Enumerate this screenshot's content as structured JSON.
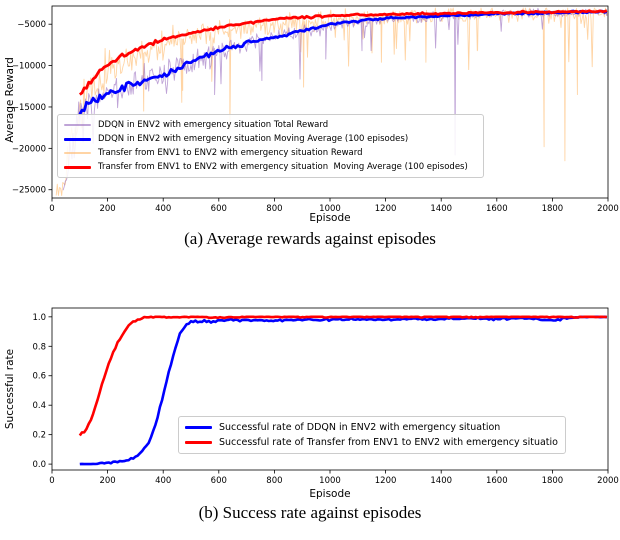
{
  "captions": {
    "a": "(a) Average rewards against episodes",
    "b": "(b) Success rate against episodes"
  },
  "chart_data": [
    {
      "id": "a",
      "type": "line",
      "title": "",
      "xlabel": "Episode",
      "ylabel": "Average Reward",
      "xlim": [
        0,
        2000
      ],
      "ylim": [
        -26000,
        -2800
      ],
      "x_ticks": [
        0,
        200,
        400,
        600,
        800,
        1000,
        1200,
        1400,
        1600,
        1800,
        2000
      ],
      "y_ticks": [
        -25000,
        -20000,
        -15000,
        -10000,
        -5000
      ],
      "y_tick_labels": [
        "−25000",
        "−20000",
        "−15000",
        "−10000",
        "−5000"
      ],
      "grid": false,
      "legend": {
        "position": "lower-left",
        "order": [
          1,
          2,
          0,
          3
        ]
      },
      "series": [
        {
          "label": "Transfer from ENV1 to ENV2 with emergency situation Reward",
          "color": "#ffb05a",
          "alpha": 0.55,
          "lw": 0.9,
          "type": "raw",
          "seed": 13,
          "range": [
            15,
            2000
          ],
          "base": [
            [
              15,
              -25300
            ],
            [
              40,
              -23500
            ],
            [
              70,
              -19500
            ],
            [
              100,
              -15800
            ],
            [
              150,
              -12800
            ],
            [
              200,
              -10800
            ],
            [
              250,
              -9700
            ],
            [
              300,
              -8900
            ],
            [
              400,
              -7400
            ],
            [
              500,
              -6500
            ],
            [
              600,
              -5900
            ],
            [
              700,
              -5300
            ],
            [
              800,
              -5000
            ],
            [
              900,
              -4700
            ],
            [
              1000,
              -4400
            ],
            [
              1200,
              -4100
            ],
            [
              1400,
              -3950
            ],
            [
              1700,
              -3750
            ],
            [
              2000,
              -3600
            ]
          ],
          "amplitude": [
            [
              15,
              1800
            ],
            [
              100,
              2600
            ],
            [
              250,
              2200
            ],
            [
              400,
              1700
            ],
            [
              600,
              1300
            ],
            [
              800,
              1100
            ],
            [
              1100,
              950
            ],
            [
              1500,
              900
            ],
            [
              2000,
              950
            ]
          ],
          "spike_prob": 0.045,
          "spike_max": 9000,
          "spikes": [
            [
              330,
              -15500
            ],
            [
              470,
              -13000
            ],
            [
              640,
              -17800
            ],
            [
              905,
              -12600
            ],
            [
              1185,
              -9600
            ],
            [
              1345,
              -9600
            ],
            [
              1530,
              -8200
            ],
            [
              1770,
              -19800
            ],
            [
              1845,
              -21500
            ],
            [
              1890,
              -13500
            ]
          ]
        },
        {
          "label": "DDQN in ENV2 with emergency situation Total Reward",
          "color": "#9467bd",
          "alpha": 0.6,
          "lw": 0.9,
          "type": "raw",
          "seed": 7,
          "range": [
            40,
            2000
          ],
          "base": [
            [
              40,
              -24500
            ],
            [
              70,
              -20000
            ],
            [
              100,
              -16800
            ],
            [
              150,
              -14800
            ],
            [
              200,
              -13900
            ],
            [
              300,
              -12300
            ],
            [
              400,
              -11100
            ],
            [
              500,
              -9700
            ],
            [
              600,
              -8400
            ],
            [
              700,
              -7400
            ],
            [
              800,
              -6600
            ],
            [
              900,
              -5900
            ],
            [
              1000,
              -5100
            ],
            [
              1100,
              -4700
            ],
            [
              1200,
              -4400
            ],
            [
              1400,
              -4050
            ],
            [
              1600,
              -3750
            ],
            [
              1800,
              -3650
            ],
            [
              2000,
              -3550
            ]
          ],
          "amplitude": [
            [
              40,
              2600
            ],
            [
              150,
              2300
            ],
            [
              300,
              2000
            ],
            [
              500,
              1500
            ],
            [
              700,
              1100
            ],
            [
              900,
              850
            ],
            [
              1100,
              650
            ],
            [
              1500,
              500
            ],
            [
              2000,
              420
            ]
          ],
          "spike_prob": 0.03,
          "spike_max": 8000,
          "spikes": [
            [
              585,
              -13500
            ],
            [
              755,
              -11800
            ],
            [
              985,
              -9200
            ],
            [
              1115,
              -8200
            ],
            [
              1450,
              -20800
            ]
          ]
        },
        {
          "label": "DDQN in ENV2 with emergency situation Moving Average (100 episodes)",
          "color": "#0000ff",
          "alpha": 1,
          "lw": 2.8,
          "type": "line",
          "seed": 3,
          "wiggle": [
            [
              100,
              500
            ],
            [
              400,
              400
            ],
            [
              700,
              250
            ],
            [
              1000,
              150
            ],
            [
              2000,
              120
            ]
          ],
          "points": [
            [
              100,
              -15600
            ],
            [
              130,
              -14600
            ],
            [
              160,
              -14100
            ],
            [
              200,
              -13600
            ],
            [
              250,
              -12900
            ],
            [
              300,
              -12200
            ],
            [
              350,
              -11600
            ],
            [
              400,
              -11050
            ],
            [
              450,
              -10400
            ],
            [
              500,
              -9600
            ],
            [
              550,
              -8900
            ],
            [
              600,
              -8300
            ],
            [
              650,
              -7750
            ],
            [
              700,
              -7300
            ],
            [
              750,
              -6900
            ],
            [
              800,
              -6500
            ],
            [
              850,
              -6150
            ],
            [
              900,
              -5800
            ],
            [
              950,
              -5400
            ],
            [
              1000,
              -5000
            ],
            [
              1050,
              -4800
            ],
            [
              1100,
              -4600
            ],
            [
              1200,
              -4300
            ],
            [
              1300,
              -4150
            ],
            [
              1400,
              -4000
            ],
            [
              1500,
              -3900
            ],
            [
              1600,
              -3750
            ],
            [
              1700,
              -3650
            ],
            [
              1800,
              -3600
            ],
            [
              1900,
              -3550
            ],
            [
              2000,
              -3500
            ]
          ]
        },
        {
          "label": "Transfer from ENV1 to ENV2 with emergency situation  Moving Average (100 episodes)",
          "color": "#ff0000",
          "alpha": 1,
          "lw": 2.8,
          "type": "line",
          "seed": 5,
          "wiggle": [
            [
              100,
              400
            ],
            [
              300,
              250
            ],
            [
              600,
              150
            ],
            [
              2000,
              100
            ]
          ],
          "points": [
            [
              100,
              -13600
            ],
            [
              130,
              -12300
            ],
            [
              160,
              -11100
            ],
            [
              200,
              -9900
            ],
            [
              250,
              -8900
            ],
            [
              300,
              -8100
            ],
            [
              350,
              -7400
            ],
            [
              400,
              -6850
            ],
            [
              450,
              -6400
            ],
            [
              500,
              -6050
            ],
            [
              550,
              -5750
            ],
            [
              600,
              -5400
            ],
            [
              650,
              -5100
            ],
            [
              700,
              -4850
            ],
            [
              750,
              -4600
            ],
            [
              800,
              -4400
            ],
            [
              900,
              -4150
            ],
            [
              1000,
              -4000
            ],
            [
              1100,
              -3900
            ],
            [
              1200,
              -3800
            ],
            [
              1300,
              -3750
            ],
            [
              1400,
              -3700
            ],
            [
              1500,
              -3650
            ],
            [
              1600,
              -3600
            ],
            [
              1700,
              -3550
            ],
            [
              1800,
              -3500
            ],
            [
              1900,
              -3450
            ],
            [
              2000,
              -3400
            ]
          ]
        }
      ]
    },
    {
      "id": "b",
      "type": "line",
      "title": "",
      "xlabel": "Episode",
      "ylabel": "Successful rate",
      "xlim": [
        0,
        2000
      ],
      "ylim": [
        -0.04,
        1.06
      ],
      "x_ticks": [
        0,
        200,
        400,
        600,
        800,
        1000,
        1200,
        1400,
        1600,
        1800,
        2000
      ],
      "y_ticks": [
        0.0,
        0.2,
        0.4,
        0.6,
        0.8,
        1.0
      ],
      "y_tick_labels": [
        "0.0",
        "0.2",
        "0.4",
        "0.6",
        "0.8",
        "1.0"
      ],
      "grid": false,
      "legend": {
        "position": "lower-right",
        "order": [
          0,
          1
        ]
      },
      "series": [
        {
          "label": "Successful rate of DDQN in ENV2 with emergency situation",
          "color": "#0000ff",
          "alpha": 1,
          "lw": 2.6,
          "type": "line",
          "seed": 21,
          "clamp": [
            0,
            1
          ],
          "wiggle": [
            [
              100,
              0.002
            ],
            [
              400,
              0.01
            ],
            [
              600,
              0.008
            ],
            [
              2000,
              0.006
            ]
          ],
          "points": [
            [
              100,
              0.0
            ],
            [
              150,
              0.0
            ],
            [
              200,
              0.01
            ],
            [
              250,
              0.02
            ],
            [
              280,
              0.03
            ],
            [
              310,
              0.06
            ],
            [
              340,
              0.12
            ],
            [
              360,
              0.2
            ],
            [
              380,
              0.32
            ],
            [
              400,
              0.47
            ],
            [
              420,
              0.62
            ],
            [
              440,
              0.76
            ],
            [
              460,
              0.88
            ],
            [
              480,
              0.94
            ],
            [
              500,
              0.965
            ],
            [
              550,
              0.97
            ],
            [
              600,
              0.975
            ],
            [
              700,
              0.98
            ],
            [
              800,
              0.975
            ],
            [
              900,
              0.98
            ],
            [
              1000,
              0.98
            ],
            [
              1100,
              0.985
            ],
            [
              1200,
              0.98
            ],
            [
              1300,
              0.985
            ],
            [
              1400,
              0.985
            ],
            [
              1500,
              0.99
            ],
            [
              1600,
              0.985
            ],
            [
              1700,
              0.99
            ],
            [
              1800,
              0.975
            ],
            [
              1850,
              0.99
            ],
            [
              1900,
              1.0
            ],
            [
              2000,
              1.0
            ]
          ]
        },
        {
          "label": "Successful rate of Transfer from ENV1 to ENV2 with emergency situatio",
          "color": "#ff0000",
          "alpha": 1,
          "lw": 2.6,
          "type": "line",
          "seed": 22,
          "clamp": [
            0,
            1
          ],
          "wiggle": [
            [
              100,
              0.01
            ],
            [
              300,
              0.008
            ],
            [
              600,
              0.005
            ],
            [
              2000,
              0.005
            ]
          ],
          "points": [
            [
              100,
              0.2
            ],
            [
              120,
              0.23
            ],
            [
              140,
              0.3
            ],
            [
              160,
              0.42
            ],
            [
              180,
              0.55
            ],
            [
              200,
              0.66
            ],
            [
              220,
              0.76
            ],
            [
              240,
              0.84
            ],
            [
              260,
              0.9
            ],
            [
              280,
              0.95
            ],
            [
              300,
              0.975
            ],
            [
              320,
              0.99
            ],
            [
              350,
              0.997
            ],
            [
              400,
              1.0
            ],
            [
              500,
              1.0
            ],
            [
              600,
              0.995
            ],
            [
              700,
              1.0
            ],
            [
              800,
              1.0
            ],
            [
              1000,
              1.0
            ],
            [
              1200,
              1.0
            ],
            [
              1400,
              1.0
            ],
            [
              1600,
              1.0
            ],
            [
              1800,
              1.0
            ],
            [
              2000,
              1.0
            ]
          ]
        }
      ]
    }
  ]
}
